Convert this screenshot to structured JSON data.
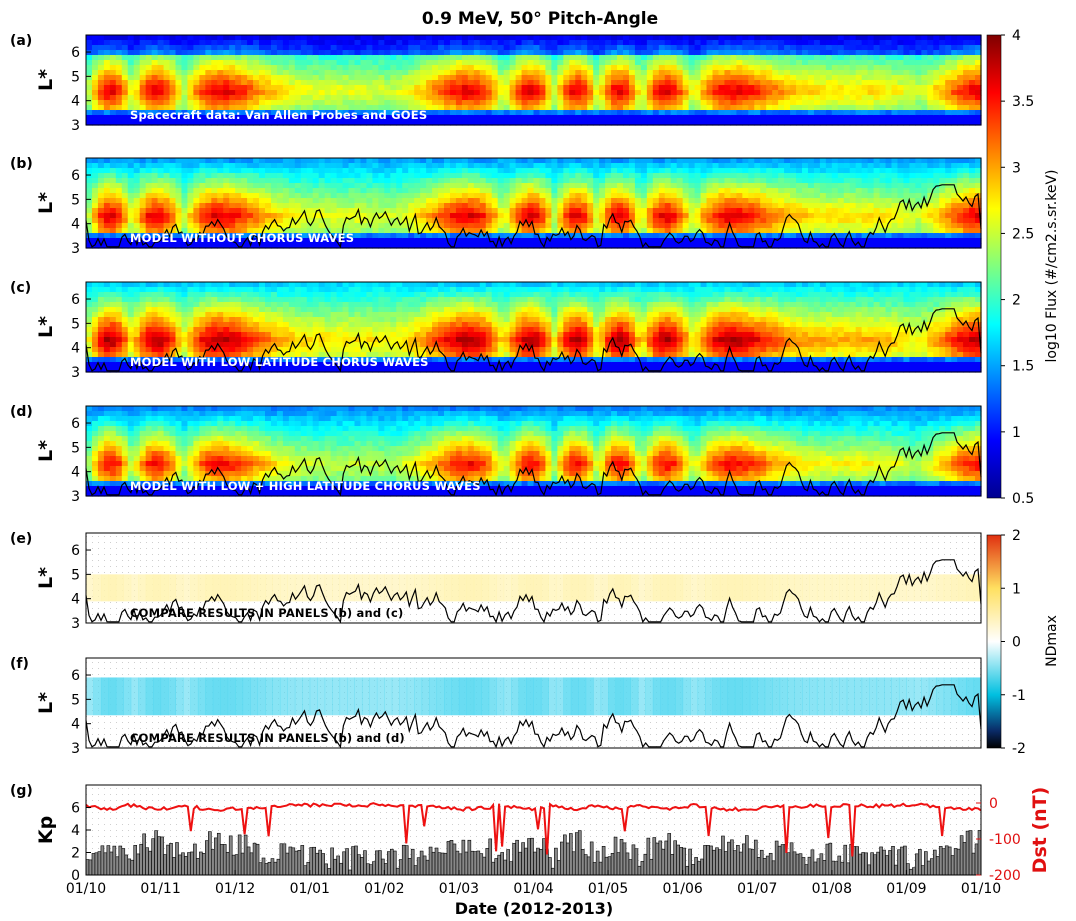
{
  "chart_data": {
    "type": "heatmap",
    "title": "0.9 MeV, 50° Pitch-Angle",
    "xlabel": "Date (2012-2013)",
    "x_ticks": [
      "01/10",
      "01/11",
      "01/12",
      "01/01",
      "01/02",
      "01/03",
      "01/04",
      "01/05",
      "01/06",
      "01/07",
      "01/08",
      "01/09",
      "01/10"
    ],
    "panels": [
      {
        "label": "(a)",
        "ylabel": "L*",
        "ylim": [
          3,
          6.7
        ],
        "y_ticks": [
          "3",
          "4",
          "5",
          "6"
        ],
        "annotation": "Spacecraft data: Van Allen Probes and GOES",
        "colorbar": "flux"
      },
      {
        "label": "(b)",
        "ylabel": "L*",
        "ylim": [
          3,
          6.7
        ],
        "y_ticks": [
          "3",
          "4",
          "5",
          "6"
        ],
        "annotation": "MODEL WITHOUT CHORUS WAVES",
        "colorbar": "flux"
      },
      {
        "label": "(c)",
        "ylabel": "L*",
        "ylim": [
          3,
          6.7
        ],
        "y_ticks": [
          "3",
          "4",
          "5",
          "6"
        ],
        "annotation": "MODEL WITH LOW LATITUDE CHORUS WAVES",
        "colorbar": "flux"
      },
      {
        "label": "(d)",
        "ylabel": "L*",
        "ylim": [
          3,
          6.7
        ],
        "y_ticks": [
          "3",
          "4",
          "5",
          "6"
        ],
        "annotation": "MODEL WITH LOW + HIGH LATITUDE CHORUS WAVES",
        "colorbar": "flux"
      },
      {
        "label": "(e)",
        "ylabel": "L*",
        "ylim": [
          3,
          6.7
        ],
        "y_ticks": [
          "3",
          "4",
          "5",
          "6"
        ],
        "annotation": "COMPARE RESULTS IN PANELS (b) and (c)",
        "colorbar": "nd"
      },
      {
        "label": "(f)",
        "ylabel": "L*",
        "ylim": [
          3,
          6.7
        ],
        "y_ticks": [
          "3",
          "4",
          "5",
          "6"
        ],
        "annotation": "COMPARE RESULTS IN PANELS (b) and (d)",
        "colorbar": "nd"
      },
      {
        "label": "(g)",
        "ylabel": "Kp",
        "ylabel_right": "Dst (nT)",
        "ylim": [
          0,
          8
        ],
        "y_ticks": [
          "0",
          "2",
          "4",
          "6"
        ],
        "ylim_right": [
          -200,
          50
        ],
        "y_ticks_right": [
          "0",
          "-100",
          "-200"
        ]
      }
    ],
    "colorbar_flux": {
      "label": "log10 Flux (#/cm2.s.sr.keV)",
      "range": [
        0.5,
        4
      ],
      "ticks": [
        "4",
        "3.5",
        "3",
        "2.5",
        "2",
        "1.5",
        "1",
        "0.5"
      ]
    },
    "colorbar_nd": {
      "label": "NDmax",
      "range": [
        -2,
        2
      ],
      "ticks": [
        "2",
        "1",
        "0",
        "-1",
        "-2"
      ]
    },
    "colors": {
      "plasmapause_line": "#000000",
      "dst_line": "#ee1111",
      "kp_bars": "#000000",
      "kp_fill": "#888888"
    }
  }
}
